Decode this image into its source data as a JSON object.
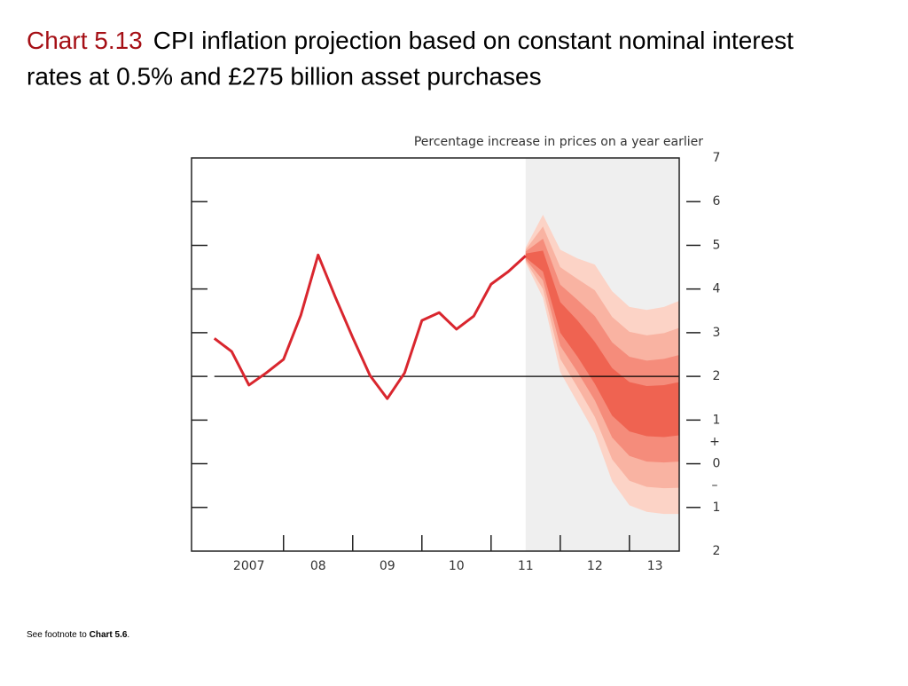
{
  "chart_data": {
    "type": "fan",
    "title_number": "Chart 5.13",
    "title": "CPI inflation projection based on constant nominal interest rates at 0.5% and £275 billion asset purchases",
    "y_axis_label": "Percentage increase in prices on a year earlier",
    "positive_sign": "+",
    "negative_sign": "–",
    "footnote_prefix": "See footnote to ",
    "footnote_ref": "Chart 5.6",
    "footnote_suffix": ".",
    "xlim": [
      2006.67,
      2013.72
    ],
    "xticks": [
      {
        "value": 2007.5,
        "label": "2007"
      },
      {
        "value": 2008.5,
        "label": "08"
      },
      {
        "value": 2009.5,
        "label": "09"
      },
      {
        "value": 2010.5,
        "label": "10"
      },
      {
        "value": 2011.5,
        "label": "11"
      },
      {
        "value": 2012.5,
        "label": "12"
      },
      {
        "value": 2013.37,
        "label": "13"
      }
    ],
    "year_starts": [
      2008,
      2009,
      2010,
      2011,
      2012,
      2013
    ],
    "ylim": [
      -2,
      7
    ],
    "yticks": [
      7,
      6,
      5,
      4,
      3,
      2,
      1,
      0,
      {
        "value": -1,
        "label": "1"
      },
      {
        "value": -2,
        "label": "2"
      }
    ],
    "target_line": 2,
    "projection_start": 2011.5,
    "projection_color": "#efefef",
    "series": [
      {
        "name": "CPI inflation",
        "color": "#d9262e",
        "x": [
          2007,
          2007.25,
          2007.5,
          2007.75,
          2008,
          2008.25,
          2008.5,
          2008.75,
          2009,
          2009.25,
          2009.5,
          2009.75,
          2010,
          2010.25,
          2010.5,
          2010.75,
          2011,
          2011.25,
          2011.5
        ],
        "values": [
          2.87,
          2.57,
          1.8,
          2.08,
          2.39,
          3.4,
          4.78,
          3.81,
          2.89,
          2.02,
          1.49,
          2.08,
          3.28,
          3.46,
          3.08,
          3.38,
          4.11,
          4.4,
          4.76
        ]
      }
    ],
    "fan_x": [
      2011.5,
      2011.75,
      2012,
      2012.25,
      2012.5,
      2012.75,
      2013,
      2013.25,
      2013.5,
      2013.72
    ],
    "bands": [
      {
        "color": "#fcd3c6",
        "upper": [
          4.95,
          5.7,
          4.9,
          4.7,
          4.56,
          3.95,
          3.59,
          3.52,
          3.59,
          3.73
        ],
        "lower": [
          4.6,
          3.8,
          2.1,
          1.4,
          0.7,
          -0.4,
          -0.95,
          -1.1,
          -1.15,
          -1.15
        ]
      },
      {
        "color": "#f9b3a2",
        "upper": [
          4.9,
          5.43,
          4.5,
          4.23,
          3.97,
          3.36,
          3.02,
          2.94,
          2.99,
          3.11
        ],
        "lower": [
          4.64,
          4.0,
          2.4,
          1.75,
          1.07,
          0.1,
          -0.39,
          -0.53,
          -0.56,
          -0.55
        ]
      },
      {
        "color": "#f58c7b",
        "upper": [
          4.86,
          5.15,
          4.1,
          3.75,
          3.38,
          2.78,
          2.45,
          2.36,
          2.4,
          2.49
        ],
        "lower": [
          4.68,
          4.2,
          2.7,
          2.1,
          1.45,
          0.6,
          0.18,
          0.05,
          0.03,
          0.05
        ]
      },
      {
        "color": "#ef6351",
        "upper": [
          4.81,
          4.88,
          3.7,
          3.28,
          2.79,
          2.19,
          1.87,
          1.78,
          1.8,
          1.87
        ],
        "lower": [
          4.72,
          4.4,
          3.0,
          2.45,
          1.83,
          1.1,
          0.74,
          0.63,
          0.61,
          0.65
        ]
      }
    ]
  }
}
